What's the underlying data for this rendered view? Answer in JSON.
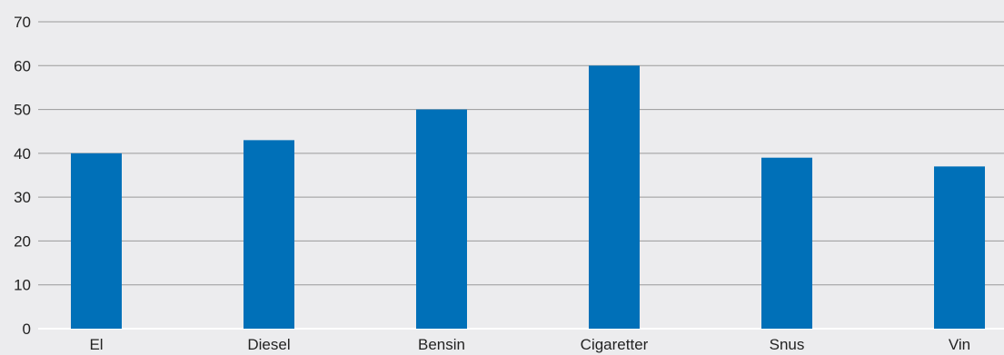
{
  "chart_data": {
    "type": "bar",
    "categories": [
      "El",
      "Diesel",
      "Bensin",
      "Cigaretter",
      "Snus",
      "Vin"
    ],
    "values": [
      40,
      43,
      50,
      60,
      39,
      37
    ],
    "ylim": [
      0,
      70
    ],
    "yticks": [
      "0",
      "10",
      "20",
      "30",
      "40",
      "50",
      "60",
      "70"
    ],
    "title": "",
    "xlabel": "",
    "ylabel": "",
    "grid": true,
    "legend": "none",
    "colors": {
      "bar": "#0070b8",
      "grid": "#9a9a9a",
      "background": "#ececee",
      "text": "#222222"
    }
  }
}
